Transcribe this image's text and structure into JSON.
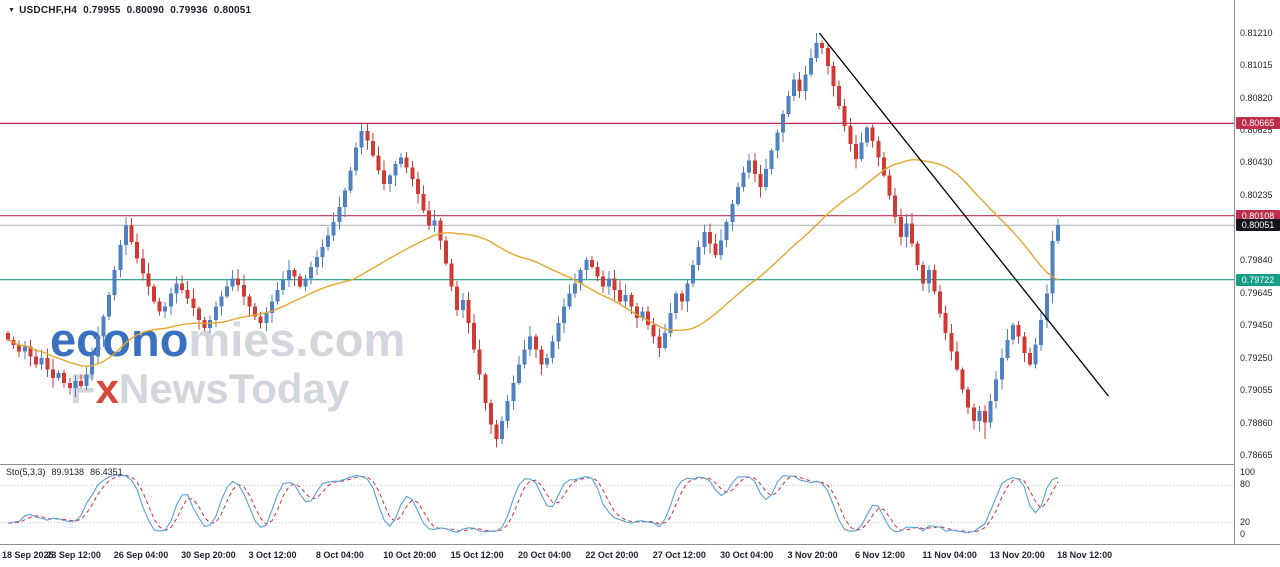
{
  "header": {
    "symbol_marker_icon": "▼",
    "symbol": "USDCHF,H4",
    "open": "0.79955",
    "high": "0.80090",
    "low": "0.79936",
    "close": "0.80051"
  },
  "watermark": {
    "brand_blue": "econo",
    "brand_gray": "mies.com",
    "news_f": "F",
    "news_x": "x",
    "news_rest": "NewsToday"
  },
  "price_axis": {
    "ticks": [
      "0.81210",
      "0.81015",
      "0.80820",
      "0.80625",
      "0.80430",
      "0.80235",
      "0.79840",
      "0.79645",
      "0.79450",
      "0.79250",
      "0.79055",
      "0.78860",
      "0.78665"
    ],
    "badges": [
      {
        "text": "0.80665",
        "price": 0.80665,
        "color": "#bf2c4c"
      },
      {
        "text": "0.80108",
        "price": 0.80108,
        "color": "#bf2c4c"
      },
      {
        "text": "0.79722",
        "price": 0.79722,
        "color": "#169e85"
      },
      {
        "text": "0.80051",
        "price": 0.80051,
        "color": "#15151d"
      }
    ]
  },
  "chart_data": {
    "type": "candlestick",
    "title": "USDCHF,H4",
    "symbol": "USDCHF",
    "timeframe": "H4",
    "ylim": [
      0.78665,
      0.8121
    ],
    "x_range": [
      "18 Sep 2025",
      "18 Nov 12:00"
    ],
    "current_ohlc": {
      "open": 0.79955,
      "high": 0.8009,
      "low": 0.79936,
      "close": 0.80051
    },
    "style": {
      "bull": "#4e80c2",
      "bear": "#cf3a35"
    },
    "first_open": 0.794,
    "closes": [
      0.7936,
      0.7933,
      0.7929,
      0.7932,
      0.7926,
      0.7921,
      0.7925,
      0.7918,
      0.7913,
      0.7916,
      0.791,
      0.7907,
      0.7911,
      0.7908,
      0.7915,
      0.7926,
      0.7938,
      0.795,
      0.7963,
      0.7978,
      0.7993,
      0.8005,
      0.7995,
      0.7985,
      0.7976,
      0.7968,
      0.7959,
      0.7953,
      0.7956,
      0.7964,
      0.797,
      0.7966,
      0.7961,
      0.7955,
      0.7948,
      0.7943,
      0.7948,
      0.7956,
      0.7962,
      0.7968,
      0.7973,
      0.7969,
      0.7962,
      0.7956,
      0.795,
      0.7946,
      0.7952,
      0.7959,
      0.7966,
      0.7972,
      0.7978,
      0.7974,
      0.7968,
      0.7973,
      0.798,
      0.7986,
      0.7992,
      0.7999,
      0.8007,
      0.8016,
      0.8026,
      0.8038,
      0.8052,
      0.8062,
      0.8056,
      0.8047,
      0.8038,
      0.803,
      0.8035,
      0.8042,
      0.8046,
      0.804,
      0.8033,
      0.8024,
      0.8014,
      0.8005,
      0.8008,
      0.7996,
      0.7982,
      0.7968,
      0.7954,
      0.796,
      0.7946,
      0.793,
      0.7915,
      0.7898,
      0.7885,
      0.7876,
      0.7887,
      0.7899,
      0.791,
      0.7921,
      0.793,
      0.7938,
      0.793,
      0.7921,
      0.7925,
      0.7935,
      0.7946,
      0.7956,
      0.7964,
      0.797,
      0.7978,
      0.7984,
      0.798,
      0.7974,
      0.7968,
      0.7973,
      0.7966,
      0.7959,
      0.7963,
      0.7956,
      0.7949,
      0.7953,
      0.7945,
      0.7938,
      0.7931,
      0.794,
      0.7952,
      0.7964,
      0.7959,
      0.797,
      0.7981,
      0.7992,
      0.8001,
      0.7994,
      0.7987,
      0.7996,
      0.8007,
      0.8018,
      0.8028,
      0.8037,
      0.8044,
      0.8036,
      0.8028,
      0.8039,
      0.805,
      0.8061,
      0.8072,
      0.8083,
      0.8093,
      0.8086,
      0.8096,
      0.8106,
      0.8115,
      0.8112,
      0.8101,
      0.8089,
      0.8077,
      0.8065,
      0.8054,
      0.8045,
      0.8055,
      0.8064,
      0.8056,
      0.8046,
      0.8035,
      0.8023,
      0.801,
      0.7998,
      0.8006,
      0.7994,
      0.7981,
      0.797,
      0.7978,
      0.7965,
      0.7952,
      0.794,
      0.7929,
      0.7918,
      0.7906,
      0.7895,
      0.7887,
      0.7893,
      0.7886,
      0.7899,
      0.7912,
      0.7925,
      0.7936,
      0.7945,
      0.7938,
      0.7928,
      0.7921,
      0.7933,
      0.7948,
      0.7964,
      0.79955,
      0.80051
    ],
    "wick_overrides": {
      "21": {
        "high": 0.801
      },
      "63": {
        "high": 0.80665
      },
      "87": {
        "low": 0.7871
      },
      "144": {
        "high": 0.8121
      },
      "174": {
        "low": 0.7876
      },
      "187": {
        "open": 0.79955,
        "high": 0.8009,
        "low": 0.79936,
        "close": 0.80051
      }
    },
    "horizontal_lines": [
      {
        "price": 0.80665,
        "color": "#bf2c4c",
        "role": "resistance"
      },
      {
        "price": 0.80108,
        "color": "#bf2c4c",
        "role": "resistance"
      },
      {
        "price": 0.79722,
        "color": "#169e85",
        "role": "support"
      }
    ],
    "current_price": {
      "price": 0.80051,
      "line_color": "#a8adb3",
      "badge_color": "#15151d"
    },
    "trendline": {
      "from_index": 144.5,
      "from_price": 0.8121,
      "to_index": 196,
      "to_price": 0.7902,
      "color": "#000000"
    },
    "moving_average": {
      "period": 40,
      "color": "#e3a62f"
    },
    "x_labels": [
      {
        "label": "18 Sep 2025",
        "index": 0
      },
      {
        "label": "23 Sep 12:00",
        "index": 12
      },
      {
        "label": "26 Sep 04:00",
        "index": 24
      },
      {
        "label": "30 Sep 20:00",
        "index": 36
      },
      {
        "label": "3 Oct 12:00",
        "index": 48
      },
      {
        "label": "8 Oct 04:00",
        "index": 60
      },
      {
        "label": "10 Oct 20:00",
        "index": 72
      },
      {
        "label": "15 Oct 12:00",
        "index": 84
      },
      {
        "label": "20 Oct 04:00",
        "index": 96
      },
      {
        "label": "22 Oct 20:00",
        "index": 108
      },
      {
        "label": "27 Oct 12:00",
        "index": 120
      },
      {
        "label": "30 Oct 04:00",
        "index": 132
      },
      {
        "label": "3 Nov 20:00",
        "index": 144
      },
      {
        "label": "6 Nov 12:00",
        "index": 156
      },
      {
        "label": "11 Nov 04:00",
        "index": 168
      },
      {
        "label": "13 Nov 20:00",
        "index": 180
      },
      {
        "label": "18 Nov 12:00",
        "index": 192
      }
    ],
    "stochastic": {
      "label": "Sto(5,3,3)",
      "main_value": "89.9138",
      "signal_value": "86.4351",
      "k": 5,
      "slowing": 3,
      "d": 3,
      "levels": [
        100,
        80,
        20,
        0
      ],
      "main_color": "#56a0d6",
      "signal_color": "#cf2f3e"
    }
  }
}
